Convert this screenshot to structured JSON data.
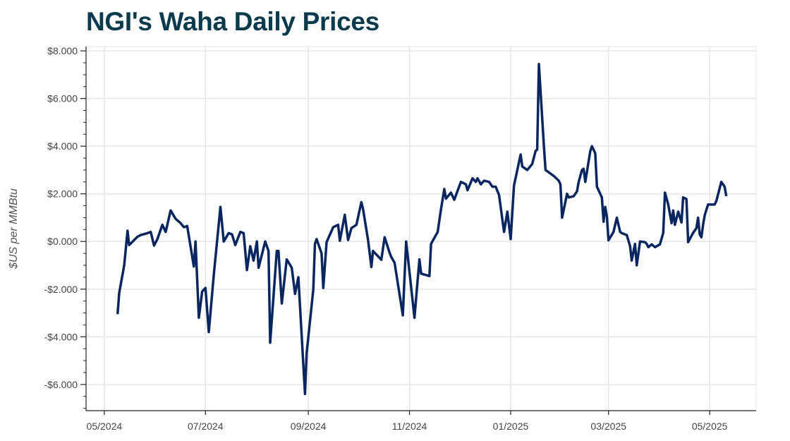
{
  "chart_data": {
    "type": "line",
    "title": "NGI's Waha Daily Prices",
    "xlabel": "",
    "ylabel": "$US per MMBtu",
    "x_unit": "days since 2024-05-01",
    "xlim": [
      -11,
      393
    ],
    "ylim": [
      -7.1,
      8.18
    ],
    "grid": true,
    "line_color": "#0a2660",
    "x_ticks": [
      {
        "day": 0,
        "label": "05/2024"
      },
      {
        "day": 61,
        "label": "07/2024"
      },
      {
        "day": 123,
        "label": "09/2024"
      },
      {
        "day": 184,
        "label": "11/2024"
      },
      {
        "day": 245,
        "label": "01/2025"
      },
      {
        "day": 304,
        "label": "03/2025"
      },
      {
        "day": 365,
        "label": "05/2025"
      }
    ],
    "y_ticks": [
      {
        "value": 8,
        "label": "$8.000"
      },
      {
        "value": 6,
        "label": "$6.000"
      },
      {
        "value": 4,
        "label": "$4.000"
      },
      {
        "value": 2,
        "label": "$2.000"
      },
      {
        "value": 0,
        "label": "$0.000"
      },
      {
        "value": -2,
        "label": "-$2.000"
      },
      {
        "value": -4,
        "label": "-$4.000"
      },
      {
        "value": -6,
        "label": "-$6.000"
      }
    ],
    "series": [
      {
        "name": "Waha Daily",
        "points": [
          [
            8,
            -3.05
          ],
          [
            9,
            -2.16
          ],
          [
            12,
            -1.0
          ],
          [
            14,
            0.45
          ],
          [
            15,
            -0.15
          ],
          [
            18,
            0.06
          ],
          [
            20,
            0.2
          ],
          [
            22,
            0.27
          ],
          [
            26,
            0.35
          ],
          [
            28,
            0.4
          ],
          [
            30,
            -0.17
          ],
          [
            32,
            0.1
          ],
          [
            35,
            0.7
          ],
          [
            37,
            0.4
          ],
          [
            40,
            1.3
          ],
          [
            43,
            0.95
          ],
          [
            46,
            0.77
          ],
          [
            48,
            0.6
          ],
          [
            50,
            0.65
          ],
          [
            54,
            -1.05
          ],
          [
            55,
            0.0
          ],
          [
            57,
            -3.2
          ],
          [
            59,
            -2.1
          ],
          [
            61,
            -1.95
          ],
          [
            63,
            -3.8
          ],
          [
            66,
            -1.4
          ],
          [
            70,
            1.45
          ],
          [
            72,
            0.0
          ],
          [
            75,
            0.35
          ],
          [
            77,
            0.3
          ],
          [
            79,
            -0.15
          ],
          [
            82,
            0.4
          ],
          [
            84,
            0.35
          ],
          [
            86,
            -1.2
          ],
          [
            88,
            -0.2
          ],
          [
            90,
            -0.8
          ],
          [
            92,
            0.0
          ],
          [
            93,
            -1.1
          ],
          [
            97,
            0.0
          ],
          [
            99,
            -0.4
          ],
          [
            100,
            -4.25
          ],
          [
            104,
            -0.4
          ],
          [
            105,
            -0.4
          ],
          [
            107,
            -2.6
          ],
          [
            110,
            -0.75
          ],
          [
            113,
            -1.1
          ],
          [
            115,
            -2.2
          ],
          [
            117,
            -1.5
          ],
          [
            121,
            -6.4
          ],
          [
            122,
            -4.7
          ],
          [
            126,
            -2.0
          ],
          [
            127,
            -0.1
          ],
          [
            128,
            0.1
          ],
          [
            131,
            -0.5
          ],
          [
            132,
            -1.95
          ],
          [
            134,
            -0.03
          ],
          [
            138,
            0.6
          ],
          [
            141,
            0.7
          ],
          [
            142,
            0.03
          ],
          [
            145,
            1.12
          ],
          [
            147,
            0.06
          ],
          [
            149,
            0.56
          ],
          [
            152,
            0.7
          ],
          [
            155,
            1.65
          ],
          [
            156,
            1.36
          ],
          [
            159,
            0.06
          ],
          [
            161,
            -1.07
          ],
          [
            162,
            -0.4
          ],
          [
            167,
            -0.77
          ],
          [
            169,
            0.18
          ],
          [
            172,
            -0.47
          ],
          [
            173,
            -0.65
          ],
          [
            175,
            -0.89
          ],
          [
            180,
            -3.1
          ],
          [
            182,
            0.0
          ],
          [
            187,
            -3.2
          ],
          [
            190,
            -0.75
          ],
          [
            191,
            -1.35
          ],
          [
            196,
            -1.45
          ],
          [
            197,
            -0.1
          ],
          [
            201,
            0.4
          ],
          [
            203,
            1.35
          ],
          [
            205,
            2.2
          ],
          [
            206,
            1.8
          ],
          [
            209,
            2.05
          ],
          [
            211,
            1.75
          ],
          [
            215,
            2.5
          ],
          [
            218,
            2.4
          ],
          [
            219,
            2.15
          ],
          [
            222,
            2.65
          ],
          [
            224,
            2.5
          ],
          [
            225,
            2.65
          ],
          [
            227,
            2.4
          ],
          [
            229,
            2.55
          ],
          [
            232,
            2.5
          ],
          [
            234,
            2.3
          ],
          [
            236,
            2.3
          ],
          [
            238,
            1.95
          ],
          [
            241,
            0.4
          ],
          [
            243,
            1.25
          ],
          [
            245,
            0.1
          ],
          [
            247,
            2.35
          ],
          [
            251,
            3.65
          ],
          [
            252,
            3.15
          ],
          [
            255,
            3.0
          ],
          [
            258,
            3.25
          ],
          [
            260,
            3.8
          ],
          [
            261,
            3.85
          ],
          [
            262,
            7.45
          ],
          [
            265,
            4.05
          ],
          [
            266,
            3.0
          ],
          [
            269,
            2.85
          ],
          [
            271,
            2.75
          ],
          [
            274,
            2.55
          ],
          [
            275,
            2.4
          ],
          [
            276,
            1.0
          ],
          [
            279,
            2.0
          ],
          [
            280,
            1.85
          ],
          [
            283,
            1.9
          ],
          [
            285,
            2.1
          ],
          [
            286,
            2.5
          ],
          [
            288,
            3.0
          ],
          [
            289,
            3.05
          ],
          [
            290,
            2.5
          ],
          [
            293,
            3.8
          ],
          [
            294,
            4.0
          ],
          [
            296,
            3.7
          ],
          [
            297,
            2.3
          ],
          [
            300,
            1.85
          ],
          [
            301,
            0.83
          ],
          [
            302,
            1.45
          ],
          [
            303,
            1.05
          ],
          [
            304,
            0.05
          ],
          [
            307,
            0.4
          ],
          [
            309,
            1.0
          ],
          [
            311,
            0.4
          ],
          [
            312,
            0.35
          ],
          [
            315,
            0.27
          ],
          [
            317,
            -0.2
          ],
          [
            318,
            -0.8
          ],
          [
            320,
            -0.1
          ],
          [
            321,
            -1.0
          ],
          [
            323,
            0.0
          ],
          [
            326,
            -0.03
          ],
          [
            327,
            -0.1
          ],
          [
            328,
            -0.24
          ],
          [
            330,
            -0.12
          ],
          [
            332,
            -0.24
          ],
          [
            333,
            -0.2
          ],
          [
            335,
            -0.12
          ],
          [
            337,
            0.36
          ],
          [
            338,
            2.05
          ],
          [
            340,
            1.55
          ],
          [
            342,
            0.77
          ],
          [
            343,
            1.3
          ],
          [
            344,
            0.7
          ],
          [
            346,
            1.25
          ],
          [
            348,
            0.8
          ],
          [
            349,
            1.85
          ],
          [
            351,
            1.78
          ],
          [
            352,
            -0.03
          ],
          [
            355,
            0.36
          ],
          [
            357,
            0.56
          ],
          [
            358,
            1.0
          ],
          [
            359,
            0.3
          ],
          [
            360,
            0.18
          ],
          [
            361,
            0.71
          ],
          [
            362,
            1.1
          ],
          [
            364,
            1.55
          ],
          [
            366,
            1.55
          ],
          [
            368,
            1.55
          ],
          [
            369,
            1.7
          ],
          [
            372,
            2.5
          ],
          [
            374,
            2.3
          ],
          [
            375,
            1.9
          ]
        ]
      }
    ]
  }
}
